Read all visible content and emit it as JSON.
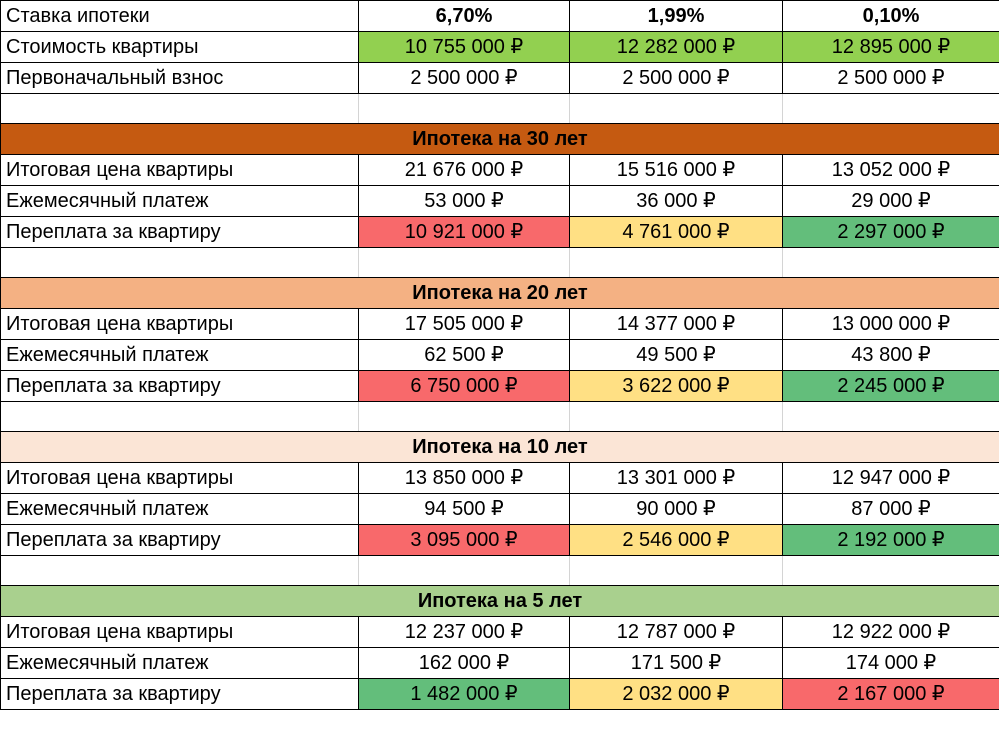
{
  "colors": {
    "green_light": "#92d050",
    "red": "#f8696b",
    "yellow": "#ffe084",
    "green": "#63be7b",
    "section_30": "#c55a11",
    "section_20": "#f4b183",
    "section_10": "#fbe5d6",
    "section_5": "#a9d08e"
  },
  "header": {
    "label": "Ставка ипотеки",
    "rates": [
      "6,70%",
      "1,99%",
      "0,10%"
    ]
  },
  "price": {
    "label": "Стоимость квартиры",
    "values": [
      "10 755 000 ₽",
      "12 282 000 ₽",
      "12 895 000 ₽"
    ]
  },
  "down_payment": {
    "label": "Первоначальный взнос",
    "values": [
      "2 500 000 ₽",
      "2 500 000 ₽",
      "2 500 000 ₽"
    ]
  },
  "sections": [
    {
      "title": "Ипотека на 30 лет",
      "total": {
        "label": "Итоговая цена квартиры",
        "values": [
          "21 676 000 ₽",
          "15 516 000 ₽",
          "13 052 000 ₽"
        ]
      },
      "monthly": {
        "label": "Ежемесячный платеж",
        "values": [
          "53 000 ₽",
          "36 000 ₽",
          "29 000 ₽"
        ]
      },
      "overpay": {
        "label": "Переплата за квартиру",
        "values": [
          "10 921 000 ₽",
          "4 761 000 ₽",
          "2 297 000 ₽"
        ]
      }
    },
    {
      "title": "Ипотека на 20 лет",
      "total": {
        "label": "Итоговая цена квартиры",
        "values": [
          "17 505 000 ₽",
          "14 377 000 ₽",
          "13 000 000 ₽"
        ]
      },
      "monthly": {
        "label": "Ежемесячный платеж",
        "values": [
          "62 500 ₽",
          "49 500 ₽",
          "43 800 ₽"
        ]
      },
      "overpay": {
        "label": "Переплата за квартиру",
        "values": [
          "6 750 000 ₽",
          "3 622 000 ₽",
          "2 245 000 ₽"
        ]
      }
    },
    {
      "title": "Ипотека на 10 лет",
      "total": {
        "label": "Итоговая цена квартиры",
        "values": [
          "13 850 000 ₽",
          "13 301 000 ₽",
          "12 947 000 ₽"
        ]
      },
      "monthly": {
        "label": "Ежемесячный платеж",
        "values": [
          "94 500 ₽",
          "90 000 ₽",
          "87 000 ₽"
        ]
      },
      "overpay": {
        "label": "Переплата за квартиру",
        "values": [
          "3 095 000 ₽",
          "2 546 000 ₽",
          "2 192 000 ₽"
        ]
      }
    },
    {
      "title": "Ипотека на 5 лет",
      "total": {
        "label": "Итоговая цена квартиры",
        "values": [
          "12 237 000 ₽",
          "12 787 000 ₽",
          "12 922 000 ₽"
        ]
      },
      "monthly": {
        "label": "Ежемесячный платеж",
        "values": [
          "162 000 ₽",
          "171 500 ₽",
          "174 000 ₽"
        ]
      },
      "overpay": {
        "label": "Переплата за квартиру",
        "values": [
          "1 482 000 ₽",
          "2 032 000 ₽",
          "2 167 000 ₽"
        ]
      }
    }
  ]
}
